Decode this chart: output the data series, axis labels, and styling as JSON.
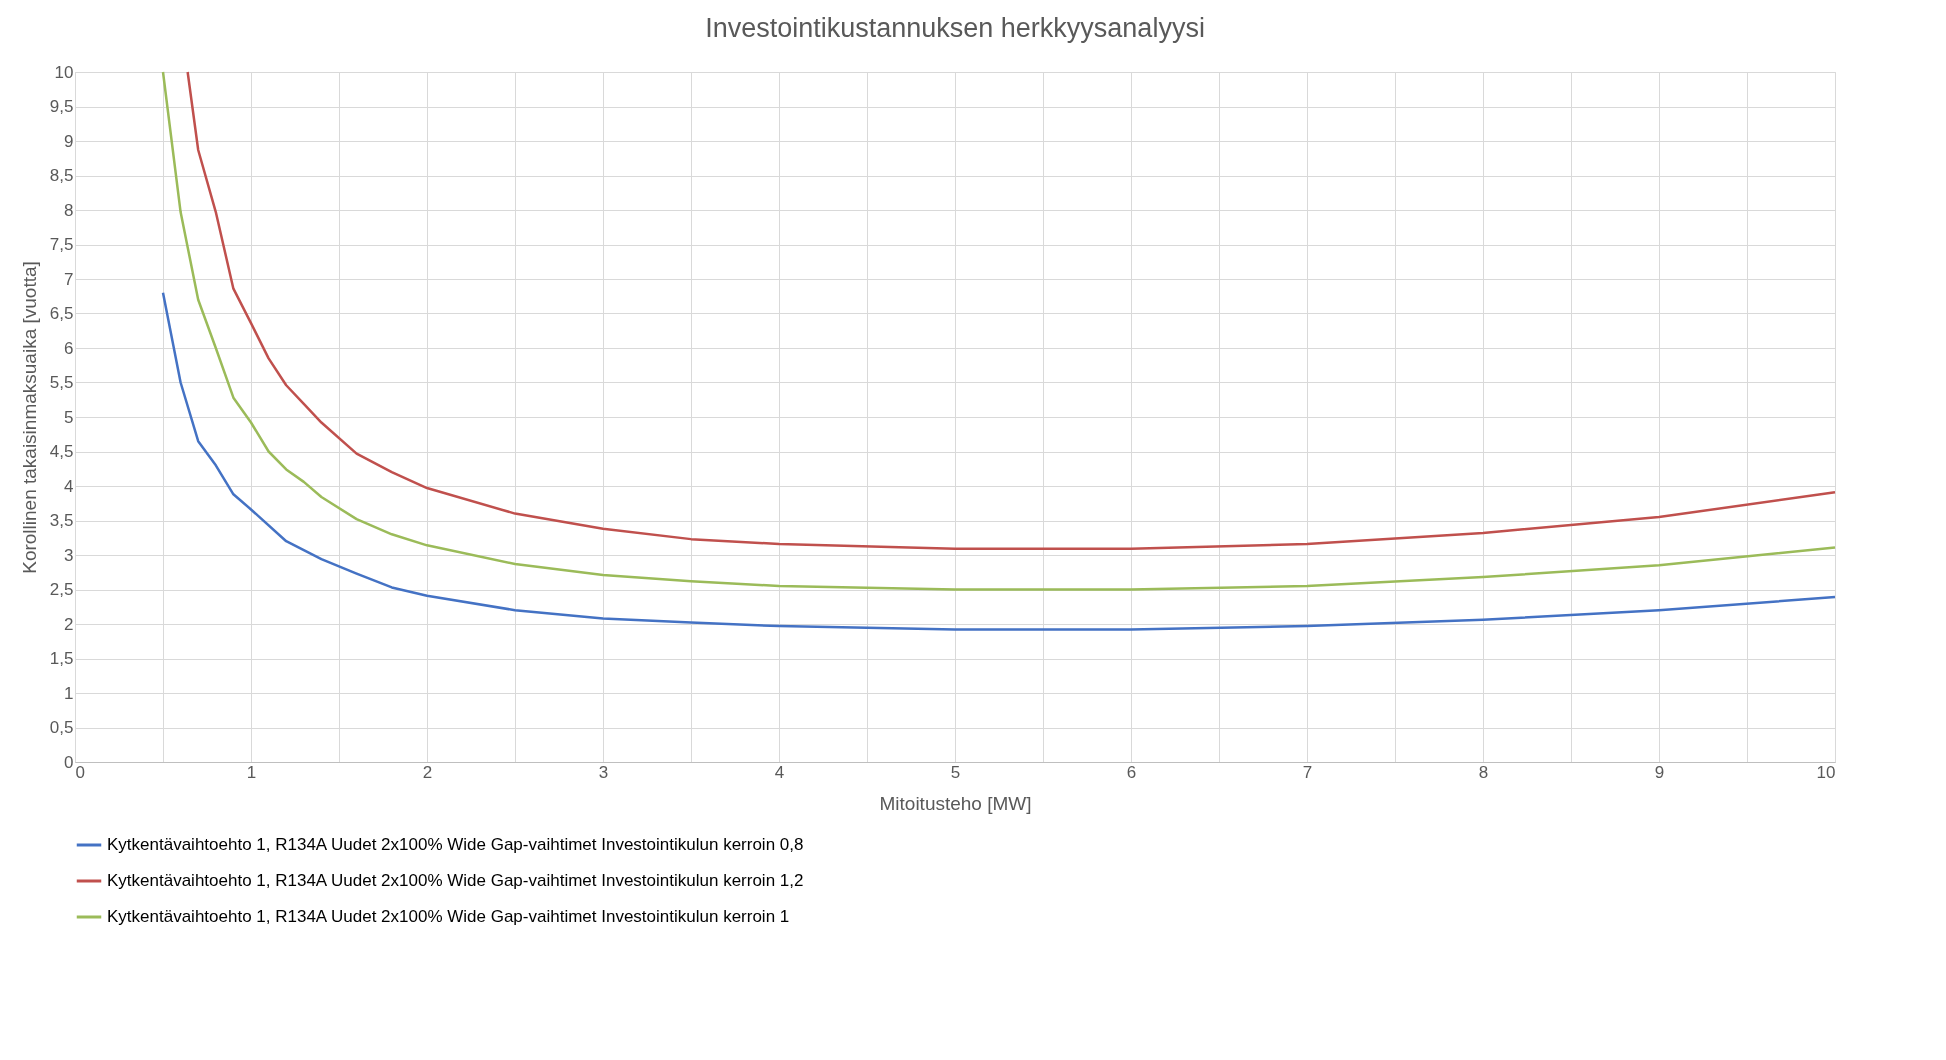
{
  "chart_data": {
    "type": "line",
    "title": "Investointikustannuksen herkkyysanalyysi",
    "xlabel": "Mitoitusteho [MW]",
    "ylabel": "Korollinen takaisinmaksuaika [vuotta]",
    "xlim": [
      0,
      10
    ],
    "ylim": [
      0,
      10
    ],
    "xticks": [
      0,
      {
        "value": 0.5,
        "label": null
      },
      1,
      {
        "value": 1.5,
        "label": null
      },
      2,
      {
        "value": 2.5,
        "label": null
      },
      3,
      {
        "value": 3.5,
        "label": null
      },
      4,
      {
        "value": 4.5,
        "label": null
      },
      5,
      {
        "value": 5.5,
        "label": null
      },
      6,
      {
        "value": 6.5,
        "label": null
      },
      7,
      {
        "value": 7.5,
        "label": null
      },
      8,
      {
        "value": 8.5,
        "label": null
      },
      9,
      {
        "value": 9.5,
        "label": null
      },
      10
    ],
    "yticks": [
      0,
      {
        "value": 0.5,
        "label": "0,5"
      },
      1,
      {
        "value": 1.5,
        "label": "1,5"
      },
      2,
      {
        "value": 2.5,
        "label": "2,5"
      },
      3,
      {
        "value": 3.5,
        "label": "3,5"
      },
      4,
      {
        "value": 4.5,
        "label": "4,5"
      },
      5,
      {
        "value": 5.5,
        "label": "5,5"
      },
      6,
      {
        "value": 6.5,
        "label": "6,5"
      },
      7,
      {
        "value": 7.5,
        "label": "7,5"
      },
      8,
      {
        "value": 8.5,
        "label": "8,5"
      },
      9,
      {
        "value": 9.5,
        "label": "9,5"
      },
      10
    ],
    "grid": true,
    "legend": "bottom",
    "marker": "none",
    "line_style": "solid",
    "series": [
      {
        "name": "Kytkentävaihtoehto 1, R134A Uudet 2x100% Wide Gap-vaihtimet Investointikulun kerroin 0,8",
        "color": "#4472c4",
        "x": [
          0.5,
          0.6,
          0.7,
          0.8,
          0.9,
          1.0,
          1.2,
          1.4,
          1.6,
          1.8,
          2,
          2.5,
          3,
          3.5,
          4,
          5,
          6,
          7,
          8,
          9,
          10
        ],
        "values": [
          6.8,
          5.5,
          4.65,
          4.3,
          3.88,
          3.66,
          3.2,
          2.94,
          2.73,
          2.53,
          2.41,
          2.2,
          2.08,
          2.02,
          1.97,
          1.92,
          1.92,
          1.97,
          2.06,
          2.2,
          2.39
        ]
      },
      {
        "name": "Kytkentävaihtoehto 1, R134A Uudet 2x100% Wide Gap-vaihtimet Investointikulun kerroin 1,2",
        "color": "#c0504d",
        "x": [
          0.64,
          0.7,
          0.8,
          0.9,
          1.0,
          1.1,
          1.2,
          1.3,
          1.4,
          1.6,
          1.8,
          2,
          2.5,
          3,
          3.5,
          4,
          5,
          6,
          7,
          8,
          9,
          10
        ],
        "values": [
          10,
          8.87,
          7.97,
          6.86,
          6.36,
          5.85,
          5.46,
          5.19,
          4.92,
          4.47,
          4.2,
          3.97,
          3.6,
          3.38,
          3.23,
          3.16,
          3.09,
          3.09,
          3.16,
          3.32,
          3.55,
          3.91
        ]
      },
      {
        "name": "Kytkentävaihtoehto 1, R134A Uudet 2x100% Wide Gap-vaihtimet Investointikulun kerroin 1",
        "color": "#9bbb59",
        "x": [
          0.5,
          0.6,
          0.7,
          0.8,
          0.9,
          1.0,
          1.1,
          1.2,
          1.3,
          1.4,
          1.6,
          1.8,
          2,
          2.5,
          3,
          3.5,
          4,
          5,
          6,
          7,
          8,
          9,
          10
        ],
        "values": [
          10,
          7.97,
          6.7,
          6.0,
          5.28,
          4.92,
          4.5,
          4.24,
          4.06,
          3.84,
          3.52,
          3.3,
          3.14,
          2.87,
          2.71,
          2.62,
          2.55,
          2.5,
          2.5,
          2.55,
          2.68,
          2.85,
          3.11
        ]
      }
    ]
  }
}
